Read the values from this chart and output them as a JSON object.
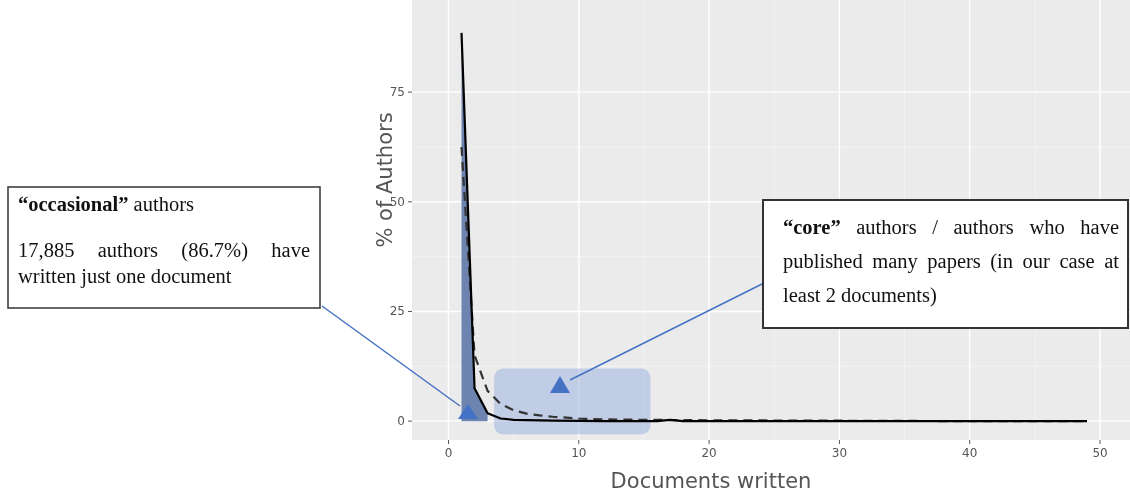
{
  "chart_data": {
    "type": "line",
    "xlabel": "Documents written",
    "ylabel": "% of Authors",
    "xlim": [
      -2.8,
      52.3
    ],
    "ylim": [
      -4.3,
      96
    ],
    "xticks": [
      0,
      10,
      20,
      30,
      40,
      50
    ],
    "yticks": [
      0,
      25,
      50,
      75
    ],
    "grid": true,
    "series": [
      {
        "type": "area",
        "color": "#6d84b0",
        "x": [
          1,
          2,
          3
        ],
        "values": [
          88.5,
          7.5,
          1.8
        ]
      },
      {
        "color": "#333333",
        "line_style": "dashed",
        "x": [
          1,
          2,
          3,
          4,
          5,
          6,
          7,
          8,
          10,
          12,
          15,
          20,
          30,
          40,
          49
        ],
        "values": [
          62.5,
          15,
          6.9,
          3.9,
          2.5,
          1.7,
          1.3,
          1,
          0.6,
          0.4,
          0.3,
          0.2,
          0.1,
          0,
          0
        ]
      },
      {
        "color": "#000000",
        "line_style": "solid",
        "x": [
          1,
          2,
          3,
          4,
          5,
          8,
          12,
          16,
          17,
          18,
          25,
          35,
          49
        ],
        "values": [
          88.5,
          7.5,
          1.8,
          0.6,
          0.3,
          0.1,
          0,
          0,
          0.3,
          0,
          0,
          0,
          0
        ]
      }
    ],
    "annotations": [
      "“occasional” authors",
      "17,885 authors (86.7%) have written just one document",
      "“core” authors / authors who have published many papers (in our case at least 2 documents)"
    ]
  }
}
